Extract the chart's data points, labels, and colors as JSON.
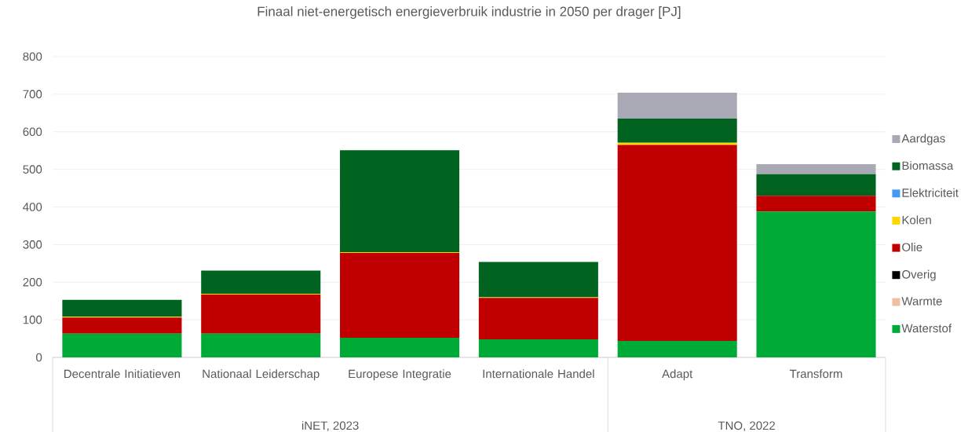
{
  "chart_data": {
    "type": "bar",
    "title": "Finaal niet-energetisch energieverbruik industrie in 2050 per drager [PJ]",
    "categories": [
      "Decentrale Initiatieven",
      "Nationaal Leiderschap",
      "Europese Integratie",
      "Internationale Handel",
      "Adapt",
      "Transform"
    ],
    "stacked": true,
    "series": [
      {
        "name": "Waterstof",
        "color": "#00aa37",
        "values": [
          63,
          63,
          52,
          48,
          44,
          388
        ]
      },
      {
        "name": "Warmte",
        "color": "#f0bea3",
        "values": [
          0,
          0,
          0,
          0,
          0,
          0
        ]
      },
      {
        "name": "Overig",
        "color": "#000000",
        "values": [
          0,
          0,
          0,
          0,
          0,
          0
        ]
      },
      {
        "name": "Olie",
        "color": "#c00000",
        "values": [
          43,
          104,
          226,
          110,
          521,
          42
        ]
      },
      {
        "name": "Kolen",
        "color": "#ffd700",
        "values": [
          2,
          2,
          2,
          2,
          6,
          0
        ]
      },
      {
        "name": "Elektriciteit",
        "color": "#4499f5",
        "values": [
          0,
          0,
          0,
          0,
          0,
          0
        ]
      },
      {
        "name": "Biomassa",
        "color": "#006420",
        "values": [
          45,
          62,
          271,
          94,
          64,
          57
        ]
      },
      {
        "name": "Aardgas",
        "color": "#a9a9b5",
        "values": [
          0,
          0,
          0,
          0,
          69,
          27
        ]
      }
    ],
    "ylim": [
      0,
      800
    ],
    "yticks": [
      0,
      100,
      200,
      300,
      400,
      500,
      600,
      700,
      800
    ],
    "grid": "y",
    "legend": "right",
    "annotations": [
      "iNET, 2023",
      "TNO, 2022"
    ]
  }
}
